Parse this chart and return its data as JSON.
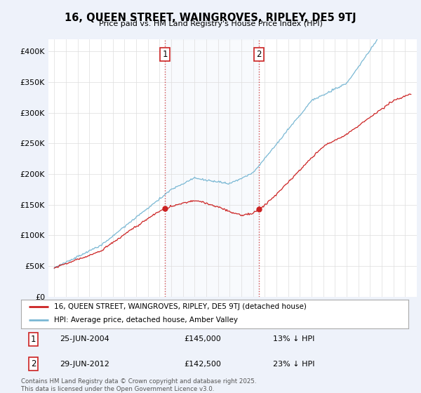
{
  "title": "16, QUEEN STREET, WAINGROVES, RIPLEY, DE5 9TJ",
  "subtitle": "Price paid vs. HM Land Registry's House Price Index (HPI)",
  "ylabel_ticks": [
    "£0",
    "£50K",
    "£100K",
    "£150K",
    "£200K",
    "£250K",
    "£300K",
    "£350K",
    "£400K"
  ],
  "ytick_values": [
    0,
    50000,
    100000,
    150000,
    200000,
    250000,
    300000,
    350000,
    400000
  ],
  "ylim": [
    0,
    420000
  ],
  "line_color_property": "#cc2222",
  "line_color_hpi": "#7ab8d4",
  "background_color": "#eef2fa",
  "plot_bg": "#ffffff",
  "sale1_date": "25-JUN-2004",
  "sale1_price": 145000,
  "sale1_label": "13% ↓ HPI",
  "sale2_date": "29-JUN-2012",
  "sale2_price": 142500,
  "sale2_label": "23% ↓ HPI",
  "legend_line1": "16, QUEEN STREET, WAINGROVES, RIPLEY, DE5 9TJ (detached house)",
  "legend_line2": "HPI: Average price, detached house, Amber Valley",
  "footer": "Contains HM Land Registry data © Crown copyright and database right 2025.\nThis data is licensed under the Open Government Licence v3.0.",
  "x_start_year": 1995,
  "x_end_year": 2025,
  "sale1_x": 2004.46,
  "sale2_x": 2012.49
}
